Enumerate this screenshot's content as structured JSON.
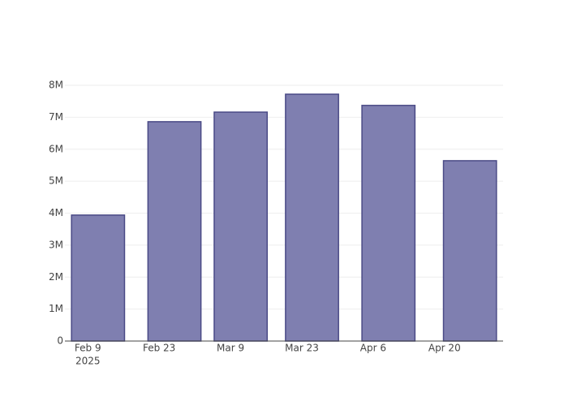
{
  "chart_data": {
    "type": "bar",
    "x": [
      "2025-02-11",
      "2025-02-26",
      "2025-03-11",
      "2025-03-25",
      "2025-04-09",
      "2025-04-25"
    ],
    "values": [
      3940000,
      6860000,
      7160000,
      7720000,
      7370000,
      5640000
    ],
    "color": "#7f7fb0",
    "line_color": "#4a4a86",
    "xlim": [
      "2025-02-04T12:00",
      "2025-05-01T12:00"
    ],
    "xticks": [
      {
        "value": "2025-02-09",
        "label": "Feb 9"
      },
      {
        "value": "2025-02-23",
        "label": "Feb 23"
      },
      {
        "value": "2025-03-09",
        "label": "Mar 9"
      },
      {
        "value": "2025-03-23",
        "label": "Mar 23"
      },
      {
        "value": "2025-04-06",
        "label": "Apr 6"
      },
      {
        "value": "2025-04-20",
        "label": "Apr 20"
      }
    ],
    "x_year_label": "2025",
    "ylim": [
      0,
      8000000
    ],
    "yticks": [
      0,
      {
        "value": 1000000,
        "label": "1M"
      },
      {
        "value": 2000000,
        "label": "2M"
      },
      {
        "value": 3000000,
        "label": "3M"
      },
      {
        "value": 4000000,
        "label": "4M"
      },
      {
        "value": 5000000,
        "label": "5M"
      },
      {
        "value": 6000000,
        "label": "6M"
      },
      {
        "value": 7000000,
        "label": "7M"
      },
      {
        "value": 8000000,
        "label": "8M"
      }
    ],
    "grid": true
  }
}
